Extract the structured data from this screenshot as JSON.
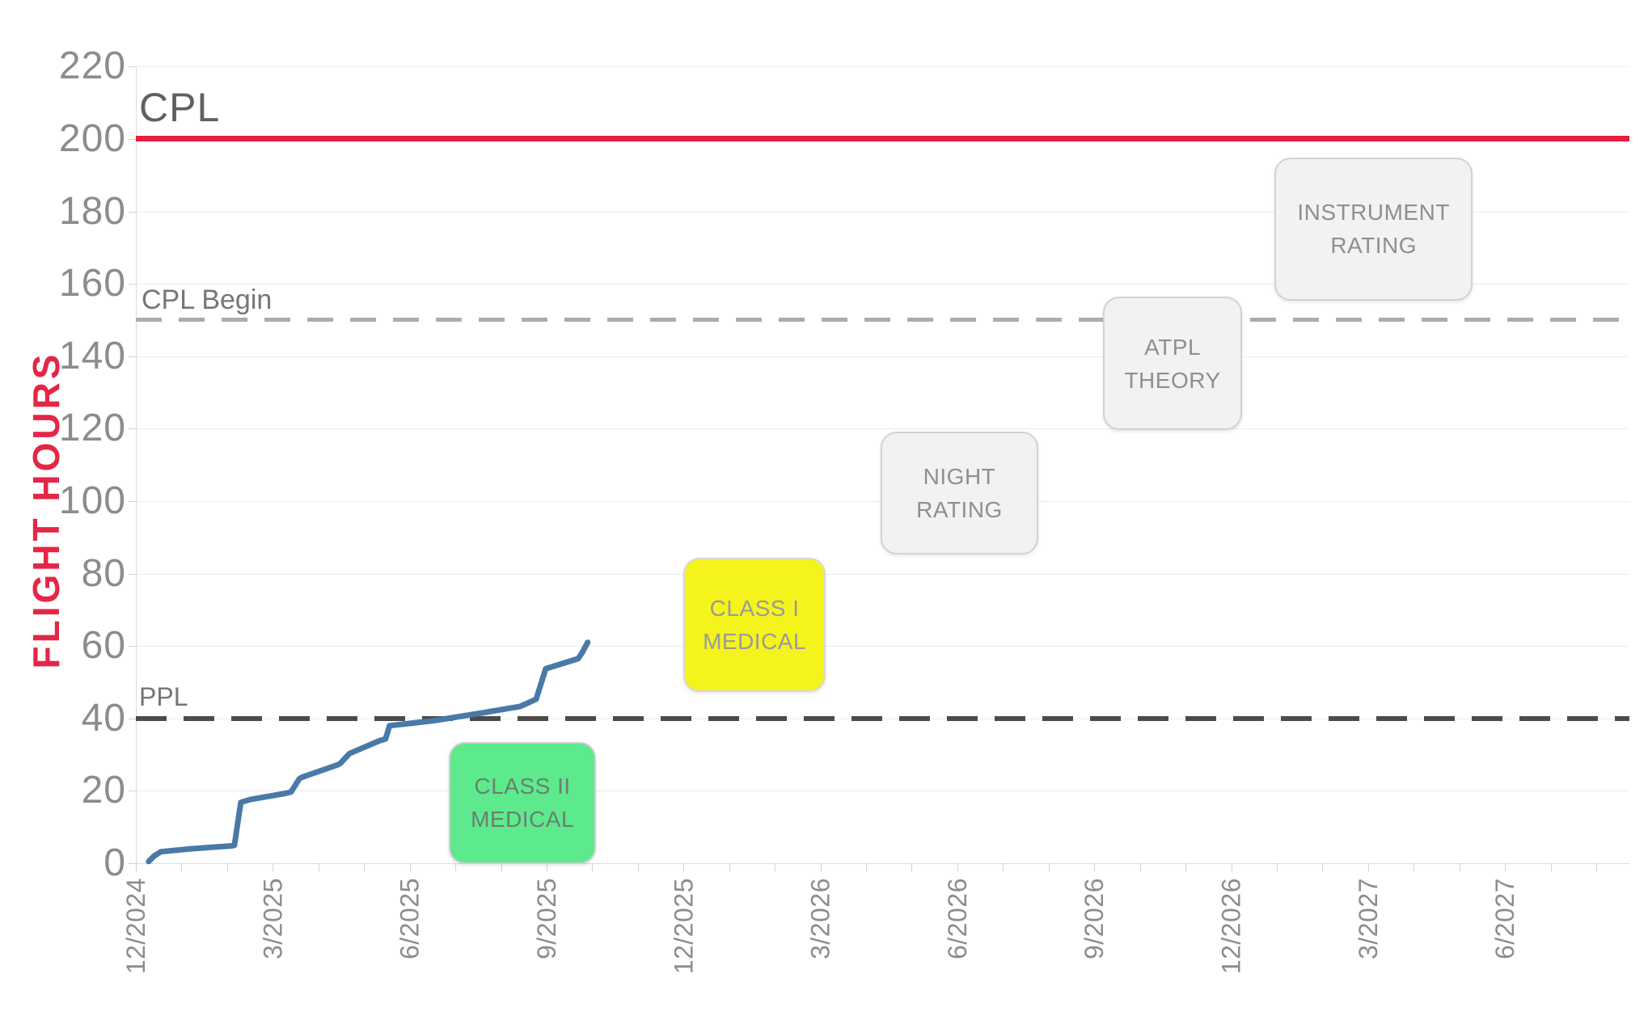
{
  "title": "CPL",
  "y_axis": {
    "label": "FLIGHT HOURS",
    "label_color": "#e42647",
    "tick_labels": [
      "0",
      "20",
      "40",
      "60",
      "80",
      "100",
      "120",
      "140",
      "160",
      "180",
      "200",
      "220"
    ],
    "tick_values": [
      0,
      20,
      40,
      60,
      80,
      100,
      120,
      140,
      160,
      180,
      200,
      220
    ]
  },
  "x_axis": {
    "tick_labels": [
      "12/2024",
      "3/2025",
      "6/2025",
      "9/2025",
      "12/2025",
      "3/2026",
      "6/2026",
      "9/2026",
      "12/2026",
      "3/2027",
      "6/2027"
    ],
    "months_between_labels": 3,
    "minor_tick_every_month": true
  },
  "reference_lines": [
    {
      "id": "cpl",
      "label": "CPL",
      "value": 200,
      "style": "solid",
      "color": "#e51f3c",
      "thickness": 7
    },
    {
      "id": "cpl-begin",
      "label": "CPL Begin",
      "value": 150,
      "style": "dashed",
      "color": "#acacac",
      "thickness": 5,
      "dash": 32,
      "gap": 21
    },
    {
      "id": "ppl",
      "label": "PPL",
      "value": 40,
      "style": "dashed",
      "color": "#4b4b4b",
      "thickness": 6,
      "dash": 38,
      "gap": 21
    }
  ],
  "milestones": [
    {
      "label_lines": [
        "CLASS II",
        "MEDICAL"
      ],
      "fill": "#5dea8c",
      "border": "#cfcfcf",
      "text_color": "#68806f",
      "month_range": [
        6.86,
        10.01
      ],
      "hours_range": [
        0.7,
        33.5
      ],
      "date_range": "2025-06-27 to 2025-10-01"
    },
    {
      "label_lines": [
        "CLASS I",
        "MEDICAL"
      ],
      "fill": "#f5f31c",
      "border": "#d8d8d4",
      "text_color": "#9a9a9a",
      "month_range": [
        12.0,
        15.04
      ],
      "hours_range": [
        48.2,
        84.4
      ],
      "date_range": "2025-12-01 to 2026-03-02"
    },
    {
      "label_lines": [
        "NIGHT",
        "RATING"
      ],
      "fill": "#f2f2f0",
      "border": "#d2d2d0",
      "text_color": "#8f8f8f",
      "month_range": [
        16.32,
        19.7
      ],
      "hours_range": [
        86.2,
        119.2
      ],
      "date_range": "2026-04-10 to 2026-07-22"
    },
    {
      "label_lines": [
        "ATPL",
        "THEORY"
      ],
      "fill": "#f2f2f0",
      "border": "#d2d2d0",
      "text_color": "#8f8f8f",
      "month_range": [
        21.19,
        24.17
      ],
      "hours_range": [
        120.5,
        156.5
      ],
      "date_range": "2026-09-06 to 2026-12-06"
    },
    {
      "label_lines": [
        "INSTRUMENT",
        "RATING"
      ],
      "fill": "#f2f2f0",
      "border": "#d2d2d0",
      "text_color": "#8f8f8f",
      "month_range": [
        24.95,
        29.22
      ],
      "hours_range": [
        156.3,
        194.9
      ],
      "date_range": "2026-12-30 to 2027-05-07"
    }
  ],
  "chart_data": {
    "type": "line",
    "title": "CPL",
    "xlabel": "",
    "ylabel": "FLIGHT HOURS",
    "ylim": [
      0,
      220
    ],
    "x_start_month": "12/2024",
    "x_end_month": "6/2027",
    "grid": "horizontal only",
    "legend": "none",
    "line_color": "#4a79a8",
    "series": [
      {
        "name": "Cumulative flight hours",
        "points_month_offset_vs_hours": [
          [
            0.28,
            0.5
          ],
          [
            0.4,
            2.0
          ],
          [
            0.55,
            3.2
          ],
          [
            1.2,
            4.0
          ],
          [
            2.1,
            4.8
          ],
          [
            2.16,
            5.0
          ],
          [
            2.3,
            16.8
          ],
          [
            2.5,
            17.6
          ],
          [
            3.28,
            19.3
          ],
          [
            3.4,
            19.7
          ],
          [
            3.58,
            23.3
          ],
          [
            3.63,
            23.7
          ],
          [
            4.43,
            27.2
          ],
          [
            4.48,
            27.6
          ],
          [
            4.68,
            30.3
          ],
          [
            5.35,
            33.9
          ],
          [
            5.47,
            34.3
          ],
          [
            5.56,
            38.0
          ],
          [
            6.54,
            39.4
          ],
          [
            7.53,
            41.4
          ],
          [
            8.42,
            43.3
          ],
          [
            8.77,
            45.3
          ],
          [
            8.98,
            53.7
          ],
          [
            9.69,
            56.5
          ],
          [
            9.78,
            58.2
          ],
          [
            9.9,
            61.0
          ]
        ],
        "points_dates_vs_hours": [
          [
            "2024-12-09",
            0.5
          ],
          [
            "2024-12-13",
            2
          ],
          [
            "2024-12-17",
            3.2
          ],
          [
            "2025-01-06",
            4
          ],
          [
            "2025-02-03",
            4.8
          ],
          [
            "2025-02-05",
            5
          ],
          [
            "2025-02-09",
            16.8
          ],
          [
            "2025-02-15",
            17.6
          ],
          [
            "2025-03-09",
            19.3
          ],
          [
            "2025-03-13",
            19.7
          ],
          [
            "2025-03-18",
            23.3
          ],
          [
            "2025-03-20",
            23.7
          ],
          [
            "2025-04-13",
            27.2
          ],
          [
            "2025-04-15",
            27.6
          ],
          [
            "2025-04-21",
            30.3
          ],
          [
            "2025-05-11",
            33.9
          ],
          [
            "2025-05-15",
            34.3
          ],
          [
            "2025-05-17",
            38
          ],
          [
            "2025-06-17",
            39.4
          ],
          [
            "2025-07-17",
            41.4
          ],
          [
            "2025-08-13",
            43.3
          ],
          [
            "2025-08-24",
            45.3
          ],
          [
            "2025-08-30",
            53.7
          ],
          [
            "2025-09-21",
            56.5
          ],
          [
            "2025-09-24",
            58.2
          ],
          [
            "2025-09-28",
            61
          ]
        ]
      }
    ],
    "reference_lines": [
      {
        "label": "CPL",
        "y": 200
      },
      {
        "label": "CPL Begin",
        "y": 150
      },
      {
        "label": "PPL",
        "y": 40
      }
    ],
    "annotations": [
      "CLASS II MEDICAL",
      "CLASS I MEDICAL",
      "NIGHT RATING",
      "ATPL THEORY",
      "INSTRUMENT RATING"
    ]
  },
  "layout_colors": {
    "grid": "#ececec",
    "axis": "#dcdcdc",
    "tick": "#d2d2d2",
    "tick_text": "#8c8c8c",
    "title_text": "#606060",
    "ref_label_text": "#767676"
  }
}
